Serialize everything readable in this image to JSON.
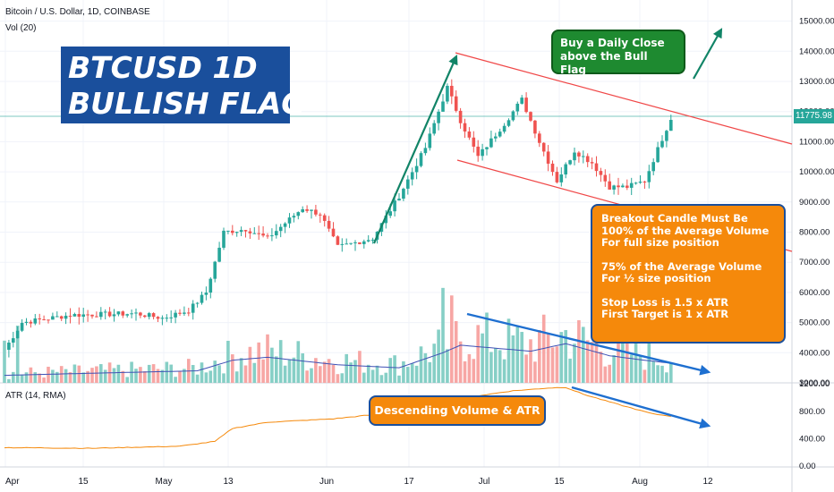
{
  "header": {
    "symbol": "Bitcoin / U.S. Dollar, 1D, COINBASE",
    "volume_label": "Vol (20)",
    "atr_label": "ATR (14, RMA)"
  },
  "annotations": {
    "title_line1": "BTCUSD 1D",
    "title_line2": "BULLISH FLAG",
    "buy_line1": "Buy a Daily Close",
    "buy_line2": "above the Bull Flag",
    "rules": [
      "Breakout Candle Must Be",
      "100% of the Average Volume",
      "For full size position",
      "75% of the Average Volume",
      "For ½ size position",
      "Stop Loss is 1.5 x ATR",
      "First Target is 1 x ATR"
    ],
    "atr_note": "Descending Volume & ATR"
  },
  "colors": {
    "up": "#26a69a",
    "down": "#ef5350",
    "vol_up": "#86cfc6",
    "vol_down": "#f7a6a4",
    "vol_ma": "#3f51b5",
    "atr": "#f5890b",
    "trend_arrow": "#118467",
    "flag_lines": "#f04848",
    "volume_arrow": "#1e6fd0"
  },
  "chart_data": {
    "type": "candlestick",
    "title": "Bitcoin / U.S. Dollar, 1D, COINBASE",
    "last_price": "11775.98",
    "price_axis": {
      "ticks": [
        "15000.00",
        "14000.00",
        "13000.00",
        "12000.00",
        "11000.00",
        "10000.00",
        "9000.00",
        "8000.00",
        "7000.00",
        "6000.00",
        "5000.00",
        "4000.00",
        "3000.00"
      ],
      "ylim": [
        2400,
        15500
      ]
    },
    "atr_axis": {
      "ticks": [
        "1200.00",
        "800.00",
        "400.00",
        "0.00"
      ],
      "ylim": [
        0,
        1300
      ]
    },
    "x_ticks": [
      "Apr",
      "15",
      "May",
      "13",
      "Jun",
      "17",
      "Jul",
      "15",
      "Aug",
      "12"
    ],
    "price_keypoints": [
      [
        0,
        4100
      ],
      [
        4,
        5000
      ],
      [
        15,
        5250
      ],
      [
        30,
        5300
      ],
      [
        36,
        5150
      ],
      [
        42,
        5400
      ],
      [
        46,
        6000
      ],
      [
        50,
        8000
      ],
      [
        55,
        8100
      ],
      [
        60,
        7800
      ],
      [
        68,
        8800
      ],
      [
        72,
        8600
      ],
      [
        76,
        7500
      ],
      [
        84,
        7800
      ],
      [
        90,
        9200
      ],
      [
        96,
        10800
      ],
      [
        101,
        12800
      ],
      [
        104,
        11700
      ],
      [
        108,
        10500
      ],
      [
        114,
        11600
      ],
      [
        118,
        12400
      ],
      [
        122,
        11000
      ],
      [
        126,
        9700
      ],
      [
        130,
        10700
      ],
      [
        134,
        10300
      ],
      [
        138,
        9500
      ],
      [
        142,
        9500
      ],
      [
        146,
        9700
      ],
      [
        150,
        11100
      ],
      [
        152,
        11780
      ]
    ],
    "atr_keypoints": [
      [
        0,
        270
      ],
      [
        20,
        260
      ],
      [
        40,
        290
      ],
      [
        48,
        360
      ],
      [
        52,
        550
      ],
      [
        60,
        640
      ],
      [
        75,
        690
      ],
      [
        90,
        790
      ],
      [
        100,
        870
      ],
      [
        105,
        1000
      ],
      [
        116,
        1100
      ],
      [
        124,
        1140
      ],
      [
        128,
        1150
      ],
      [
        132,
        1050
      ],
      [
        140,
        900
      ],
      [
        148,
        760
      ],
      [
        152,
        730
      ]
    ],
    "volume_ma_keypoints": [
      [
        0,
        3250
      ],
      [
        20,
        3320
      ],
      [
        44,
        3400
      ],
      [
        52,
        3750
      ],
      [
        60,
        3850
      ],
      [
        76,
        3600
      ],
      [
        90,
        3500
      ],
      [
        100,
        4000
      ],
      [
        104,
        4250
      ],
      [
        112,
        4150
      ],
      [
        120,
        4050
      ],
      [
        128,
        4300
      ],
      [
        138,
        3900
      ],
      [
        146,
        3750
      ],
      [
        152,
        3650
      ]
    ]
  }
}
